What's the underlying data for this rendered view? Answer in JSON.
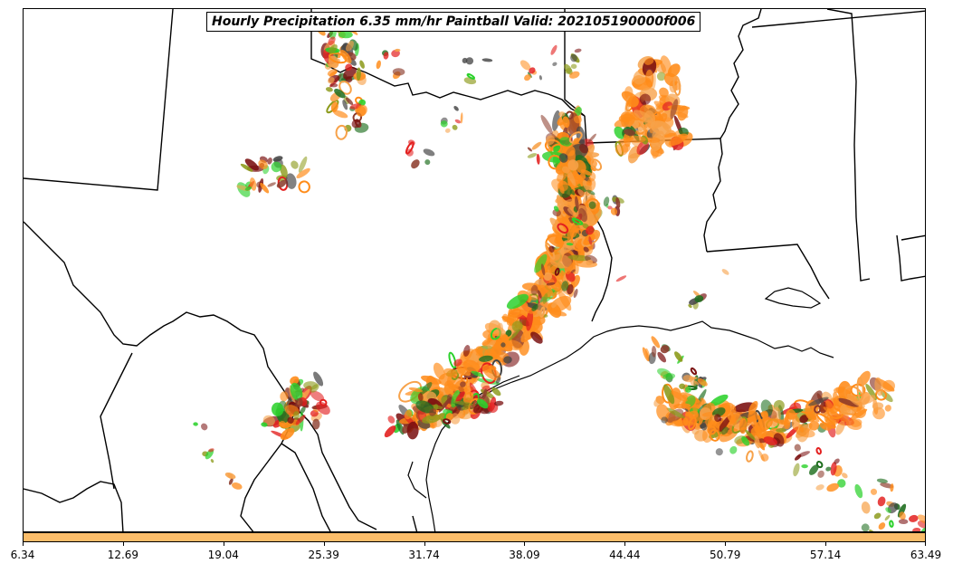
{
  "title": "Hourly Precipitation 6.35 mm/hr Paintball Valid: 202105190000f006",
  "colorbar": {
    "color": "#fbbd6a",
    "ticks": [
      "6.34",
      "12.69",
      "19.04",
      "25.39",
      "31.74",
      "38.09",
      "44.44",
      "50.79",
      "57.14",
      "63.49"
    ]
  },
  "colors": {
    "orange": "#ff8c1a",
    "light_orange": "#f7a24a",
    "red": "#e3201f",
    "dark_red": "#7a1010",
    "green": "#2bd12b",
    "dark_green": "#1e6e1e",
    "olive": "#8c9a1a",
    "brown": "#8b3a2a",
    "gray": "#444444"
  }
}
